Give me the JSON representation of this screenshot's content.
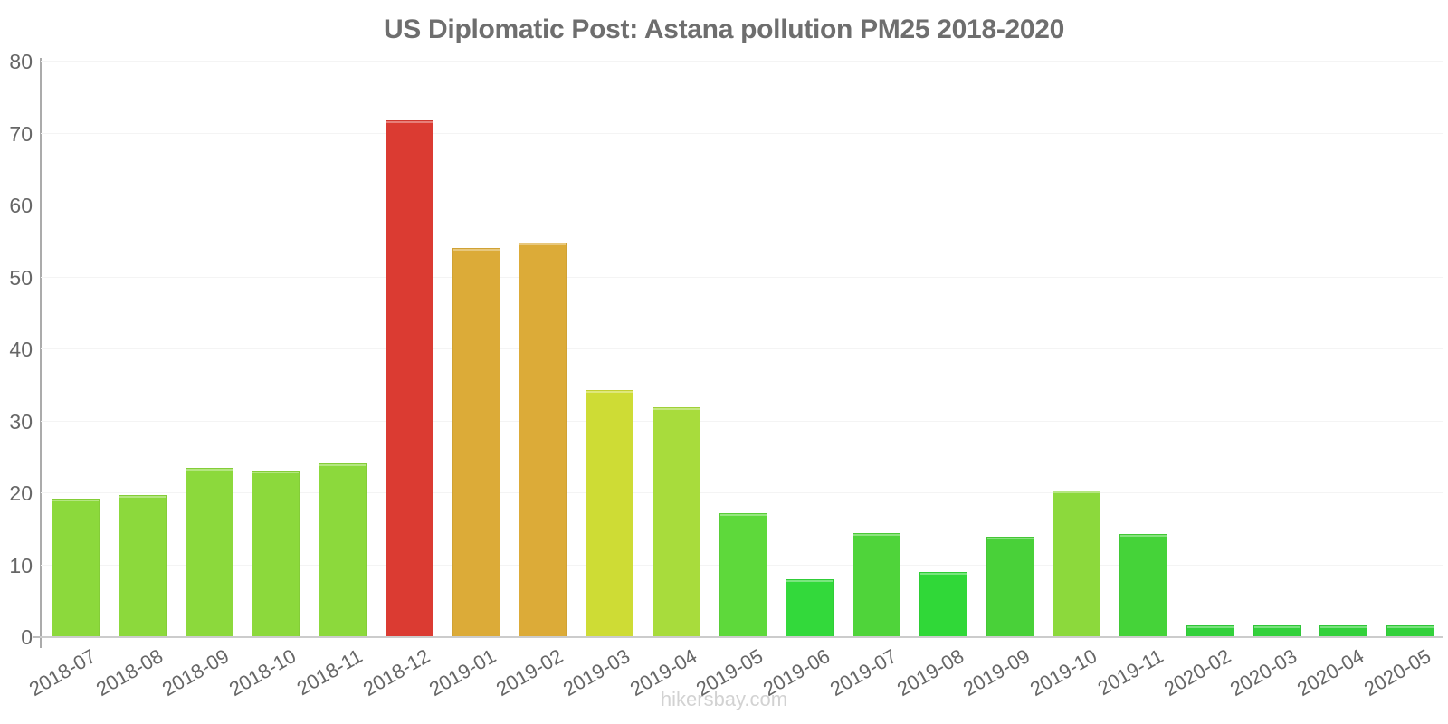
{
  "title": "US Diplomatic Post: Astana pollution PM25 2018-2020",
  "watermark": "hikersbay.com",
  "colors": {
    "background": "#ffffff",
    "title_text": "#6e6e6e",
    "tick_label": "#666666",
    "axis_line": "#ababab",
    "baseline": "#cccccc",
    "gridline": "#f4f4f4",
    "watermark": "#d2d2d2"
  },
  "chart_data": {
    "type": "bar",
    "title": "US Diplomatic Post: Astana pollution PM25 2018-2020",
    "xlabel": "",
    "ylabel": "",
    "ylim": [
      0,
      80
    ],
    "yticks": [
      0,
      10,
      20,
      30,
      40,
      50,
      60,
      70,
      80
    ],
    "grid": "faint horizontal gridlines",
    "legend_position": "none",
    "categories": [
      "2018-07",
      "2018-08",
      "2018-09",
      "2018-10",
      "2018-11",
      "2018-12",
      "2019-01",
      "2019-02",
      "2019-03",
      "2019-04",
      "2019-05",
      "2019-06",
      "2019-07",
      "2019-08",
      "2019-09",
      "2019-10",
      "2019-11",
      "2020-02",
      "2020-03",
      "2020-04",
      "2020-05"
    ],
    "values": [
      19.3,
      19.7,
      23.5,
      23.2,
      24.1,
      71.8,
      54.1,
      54.9,
      34.4,
      31.9,
      17.2,
      8.0,
      14.5,
      9.1,
      14.0,
      20.4,
      14.4,
      1.7,
      1.7,
      1.7,
      1.7
    ],
    "bar_colors": [
      "#8CD93C",
      "#8CD93C",
      "#8CD93C",
      "#8CD93C",
      "#8CD93C",
      "#DB3B32",
      "#DCAB38",
      "#DCAB38",
      "#CEDC35",
      "#A8DC3C",
      "#5ED93B",
      "#33D93B",
      "#4FD43A",
      "#30D838",
      "#49D139",
      "#8CD93C",
      "#45D339",
      "#33D13B",
      "#33D13B",
      "#33D13B",
      "#33D13B"
    ]
  }
}
